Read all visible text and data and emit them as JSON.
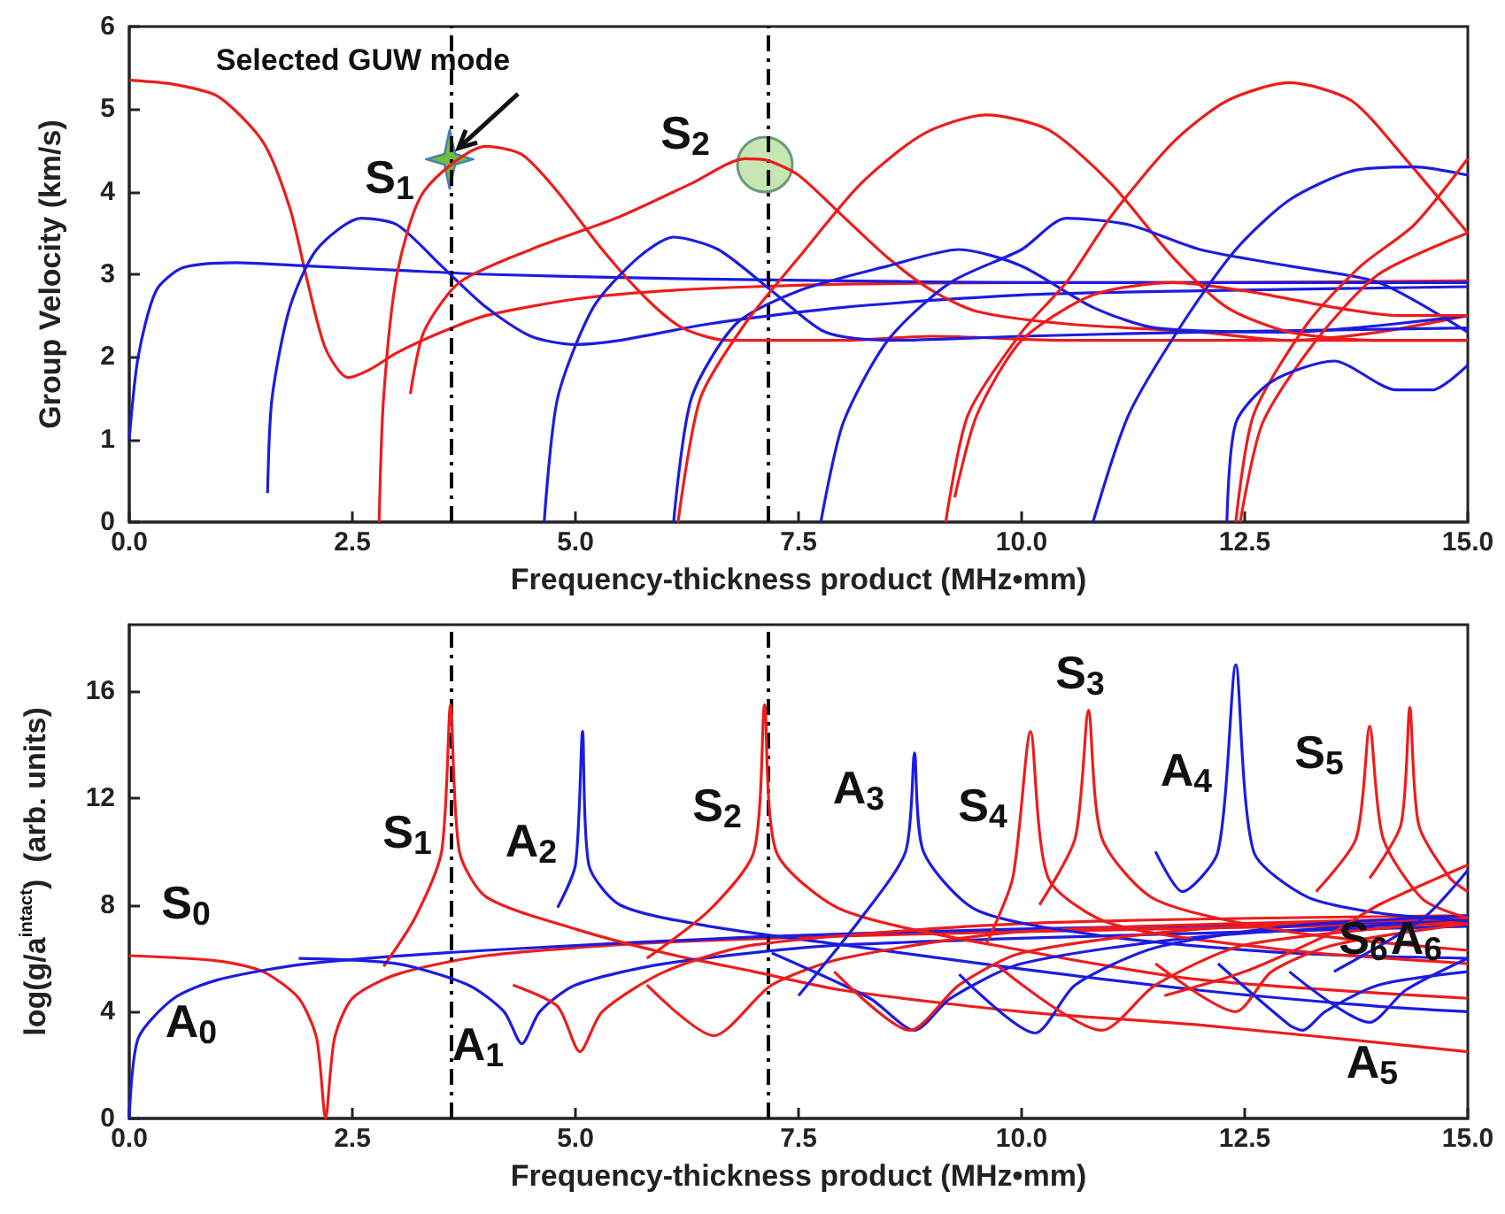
{
  "chart_data": [
    {
      "type": "line",
      "xlabel": "Frequency-thickness product (MHz•mm)",
      "ylabel": "Group Velocity (km/s)",
      "xlim": [
        0,
        15
      ],
      "xticks": [
        {
          "value": 0,
          "label": "0.0"
        },
        {
          "value": 2.5,
          "label": "2.5"
        },
        {
          "value": 5,
          "label": "5.0"
        },
        {
          "value": 7.5,
          "label": "7.5"
        },
        {
          "value": 10,
          "label": "10.0"
        },
        {
          "value": 12.5,
          "label": "12.5"
        },
        {
          "value": 15,
          "label": "15.0"
        }
      ],
      "ylim": [
        0,
        6
      ],
      "yticks": [
        0,
        1,
        2,
        3,
        4,
        5,
        6
      ],
      "annotations": [
        {
          "text": "Selected GUW mode",
          "x": 3.6,
          "y": 4.4
        },
        "S$_{1}$",
        "S$_{2}$"
      ],
      "ref_lines": [
        {
          "axis": "x",
          "value": 3.6,
          "label": null,
          "line_style": "dashed",
          "color": "#000000"
        },
        {
          "axis": "x",
          "value": 7.15,
          "label": null,
          "line_style": "dashed",
          "color": "#000000"
        }
      ],
      "series": [
        {
          "color": "#ee1c1c",
          "x": [
            0,
            0.5,
            1,
            1.5,
            1.8,
            2,
            2.2,
            2.45,
            2.7,
            3,
            3.5,
            4,
            5,
            6,
            7,
            8,
            10,
            12,
            15
          ],
          "values": [
            5.35,
            5.3,
            5.15,
            4.6,
            3.8,
            2.9,
            2.1,
            1.75,
            1.85,
            2.05,
            2.3,
            2.5,
            2.7,
            2.8,
            2.85,
            2.88,
            2.9,
            2.9,
            2.92
          ]
        },
        {
          "color": "#1c1ce0",
          "x": [
            0,
            0.1,
            0.3,
            0.6,
            1.2,
            2,
            3,
            4,
            6,
            8,
            10,
            12,
            15
          ],
          "values": [
            1,
            2,
            2.8,
            3.08,
            3.14,
            3.1,
            3.05,
            3,
            2.95,
            2.92,
            2.9,
            2.9,
            2.9
          ]
        },
        {
          "color": "#1c1ce0",
          "x": [
            1.55,
            1.6,
            1.8,
            2.1,
            2.6,
            3,
            3.5,
            4,
            4.5,
            5,
            5.5,
            6.5,
            8,
            10,
            12,
            15
          ],
          "values": [
            0.35,
            1.5,
            2.6,
            3.3,
            3.68,
            3.6,
            3.1,
            2.6,
            2.25,
            2.15,
            2.2,
            2.4,
            2.6,
            2.75,
            2.8,
            2.85
          ]
        },
        {
          "color": "#ee1c1c",
          "x": [
            2.8,
            2.85,
            3,
            3.3,
            4,
            4.4,
            4.8,
            5.3,
            5.8,
            6.2,
            6.7,
            7.2,
            8,
            9,
            10.5,
            12,
            14,
            15
          ],
          "values": [
            0,
            1.5,
            3,
            4,
            4.55,
            4.45,
            4,
            3.3,
            2.7,
            2.35,
            2.2,
            2.2,
            2.2,
            2.25,
            2.2,
            2.2,
            2.2,
            2.2
          ]
        },
        {
          "color": "#ee1c1c",
          "x": [
            3.15,
            3.3,
            3.7,
            4.5,
            5.5,
            6.3,
            6.9,
            7.15,
            7.5,
            8,
            8.5,
            9,
            9.5,
            10.5,
            12,
            13,
            14,
            15
          ],
          "values": [
            1.55,
            2.3,
            2.9,
            3.3,
            3.7,
            4.1,
            4.4,
            4.38,
            4.2,
            3.7,
            3.2,
            2.8,
            2.55,
            2.4,
            2.3,
            2.2,
            2.3,
            2.5
          ]
        },
        {
          "color": "#1c1ce0",
          "x": [
            4.65,
            4.8,
            5.2,
            5.7,
            6.1,
            6.6,
            7.2,
            7.8,
            8.5,
            10,
            12,
            15
          ],
          "values": [
            0,
            1.5,
            2.6,
            3.2,
            3.45,
            3.3,
            2.8,
            2.3,
            2.2,
            2.25,
            2.3,
            2.35
          ]
        },
        {
          "color": "#1c1ce0",
          "x": [
            6.1,
            6.3,
            6.8,
            7.5,
            8.5,
            9.3,
            10,
            10.8,
            11.5,
            13,
            15
          ],
          "values": [
            0,
            1.5,
            2.4,
            2.8,
            3.1,
            3.3,
            3.1,
            2.6,
            2.35,
            2.3,
            2.5
          ]
        },
        {
          "color": "#ee1c1c",
          "x": [
            6.15,
            6.4,
            6.9,
            7.5,
            8.2,
            8.9,
            9.6,
            10.3,
            11,
            11.7,
            12.3,
            13,
            14,
            15
          ],
          "values": [
            0,
            1.5,
            2.4,
            3.2,
            4.1,
            4.7,
            4.93,
            4.75,
            4.1,
            3.2,
            2.6,
            2.3,
            2.2,
            2.2
          ]
        },
        {
          "color": "#1c1ce0",
          "x": [
            7.75,
            8,
            8.5,
            9.2,
            10,
            10.5,
            11.2,
            12,
            13,
            14,
            15
          ],
          "values": [
            0,
            1.2,
            2.2,
            2.9,
            3.3,
            3.68,
            3.6,
            3.3,
            3.1,
            2.9,
            2.3
          ]
        },
        {
          "color": "#ee1c1c",
          "x": [
            9.15,
            9.4,
            10,
            10.5,
            11,
            11.7,
            12.3,
            13,
            13.7,
            14.3,
            15
          ],
          "values": [
            0,
            1.3,
            2.3,
            2.9,
            3.7,
            4.6,
            5.1,
            5.32,
            5.1,
            4.4,
            3.5
          ]
        },
        {
          "color": "#ee1c1c",
          "x": [
            9.25,
            9.5,
            10,
            10.8,
            11.7,
            12.5,
            13.5,
            14.2,
            15
          ],
          "values": [
            0.3,
            1.3,
            2.2,
            2.75,
            2.9,
            2.8,
            2.6,
            2.5,
            2.5
          ]
        },
        {
          "color": "#1c1ce0",
          "x": [
            10.8,
            11.2,
            11.8,
            12.4,
            13,
            13.7,
            14.4,
            15
          ],
          "values": [
            0,
            1.3,
            2.4,
            3.3,
            3.9,
            4.25,
            4.3,
            4.2
          ]
        },
        {
          "color": "#ee1c1c",
          "x": [
            12.4,
            12.6,
            13.2,
            13.8,
            14.4,
            15
          ],
          "values": [
            0,
            1.3,
            2.4,
            3.1,
            3.6,
            4.4
          ]
        },
        {
          "color": "#ee1c1c",
          "x": [
            12.45,
            12.7,
            13.3,
            14,
            15
          ],
          "values": [
            0,
            1.2,
            2.2,
            3,
            3.5
          ]
        },
        {
          "color": "#1c1ce0",
          "x": [
            12.3,
            12.4,
            12.8,
            13.5,
            14.2,
            14.6,
            15
          ],
          "values": [
            0,
            1.2,
            1.7,
            1.95,
            1.6,
            1.6,
            1.9
          ]
        }
      ]
    },
    {
      "type": "line",
      "xlabel": "Frequency-thickness product (MHz•mm)",
      "ylabel": "log(g/a$^{intact}$)  (arb. units)",
      "xlim": [
        0,
        15
      ],
      "xticks": [
        {
          "value": 0,
          "label": "0.0"
        },
        {
          "value": 2.5,
          "label": "2.5"
        },
        {
          "value": 5,
          "label": "5.0"
        },
        {
          "value": 7.5,
          "label": "7.5"
        },
        {
          "value": 10,
          "label": "10.0"
        },
        {
          "value": 12.5,
          "label": "12.5"
        },
        {
          "value": 15,
          "label": "15.0"
        }
      ],
      "ylim": [
        0,
        18.5
      ],
      "yticks": [
        0,
        4,
        8,
        12,
        16
      ],
      "annotations": [
        "S$_{0}$",
        "A$_{0}$",
        "S$_{1}$",
        "A$_{1}$",
        "A$_{2}$",
        "S$_{2}$",
        "A$_{3}$",
        "S$_{4}$",
        "S$_{3}$",
        "A$_{4}$",
        "S$_{5}$",
        "S$_{6}$",
        "A$_{6}$",
        "A$_{5}$"
      ],
      "ref_lines": [
        {
          "axis": "x",
          "value": 3.6,
          "label": null,
          "line_style": "dashed",
          "color": "#000000"
        },
        {
          "axis": "x",
          "value": 7.15,
          "label": null,
          "line_style": "dashed",
          "color": "#000000"
        }
      ],
      "series": [
        {
          "color": "#ee1c1c",
          "x": [
            0,
            1,
            1.5,
            1.9,
            2.1,
            2.2,
            2.3,
            2.5,
            3,
            4,
            6,
            10,
            15
          ],
          "values": [
            6.1,
            5.9,
            5.5,
            4.5,
            3,
            0,
            3,
            4.5,
            5.4,
            6.1,
            6.6,
            7,
            7.3
          ]
        },
        {
          "color": "#1c1ce0",
          "x": [
            0,
            0.1,
            0.5,
            1,
            2,
            4,
            7,
            10,
            15
          ],
          "values": [
            0,
            3,
            4.5,
            5.2,
            5.8,
            6.3,
            6.8,
            7.1,
            7.4
          ]
        },
        {
          "color": "#ee1c1c",
          "x": [
            2.85,
            3.2,
            3.5,
            3.6,
            3.7,
            4,
            5,
            6,
            7,
            8,
            10,
            12,
            15
          ],
          "values": [
            5.7,
            7.5,
            10,
            15.5,
            10,
            8.3,
            7.1,
            6.2,
            5.5,
            4.8,
            4,
            3.5,
            2.5
          ]
        },
        {
          "color": "#1c1ce0",
          "x": [
            1.9,
            3,
            3.8,
            4.2,
            4.4,
            4.6,
            5,
            6,
            8,
            15
          ],
          "values": [
            6,
            5.8,
            5,
            4,
            2.8,
            4,
            5,
            5.8,
            6.5,
            7.2
          ]
        },
        {
          "color": "#1c1ce0",
          "x": [
            4.8,
            5,
            5.08,
            5.15,
            5.5,
            6.5,
            8,
            10,
            12,
            14,
            15
          ],
          "values": [
            7.9,
            9.5,
            14.5,
            9.5,
            8,
            7.2,
            6.5,
            5.6,
            4.8,
            4.2,
            4
          ]
        },
        {
          "color": "#ee1c1c",
          "x": [
            4.3,
            4.8,
            5.05,
            5.3,
            6,
            7,
            10,
            15
          ],
          "values": [
            5,
            4.2,
            2.5,
            4,
            5.5,
            6.5,
            7.3,
            7.6
          ]
        },
        {
          "color": "#ee1c1c",
          "x": [
            5.8,
            6.5,
            7,
            7.12,
            7.25,
            8,
            10,
            12,
            15
          ],
          "values": [
            6,
            7.8,
            10,
            15.5,
            10,
            7.8,
            6.3,
            5.2,
            4.5
          ]
        },
        {
          "color": "#ee1c1c",
          "x": [
            5.8,
            6.55,
            7.2,
            8,
            10,
            15
          ],
          "values": [
            5,
            3.1,
            5,
            6,
            7,
            7.5
          ]
        },
        {
          "color": "#1c1ce0",
          "x": [
            7.5,
            8.2,
            8.7,
            8.8,
            8.9,
            9.5,
            11,
            13,
            15
          ],
          "values": [
            4.6,
            7.5,
            10,
            13.7,
            10,
            7.8,
            6.8,
            6.2,
            6
          ]
        },
        {
          "color": "#1c1ce0",
          "x": [
            7.2,
            8.3,
            8.8,
            9.2,
            10,
            12,
            15
          ],
          "values": [
            6.2,
            4.5,
            3.3,
            4.5,
            5.8,
            6.8,
            7.4
          ]
        },
        {
          "color": "#ee1c1c",
          "x": [
            7.9,
            8.75,
            9.3,
            10,
            12,
            15
          ],
          "values": [
            5.5,
            3.3,
            5,
            6.2,
            7.1,
            7.5
          ]
        },
        {
          "color": "#ee1c1c",
          "x": [
            9.6,
            9.9,
            10.1,
            10.3,
            11,
            13,
            15
          ],
          "values": [
            6.5,
            9,
            14.5,
            9,
            7.3,
            6.3,
            5.8
          ]
        },
        {
          "color": "#1c1ce0",
          "x": [
            9.3,
            10.15,
            10.6,
            11.5,
            13,
            15
          ],
          "values": [
            5.4,
            3.2,
            5,
            6.4,
            7.2,
            7.6
          ]
        },
        {
          "color": "#ee1c1c",
          "x": [
            10.2,
            10.6,
            10.75,
            10.9,
            11.5,
            13,
            15
          ],
          "values": [
            8,
            10.5,
            15.3,
            10.5,
            8.2,
            7,
            6.3
          ]
        },
        {
          "color": "#ee1c1c",
          "x": [
            9.7,
            10.9,
            11.5,
            12.5,
            15
          ],
          "values": [
            5.8,
            3.3,
            5,
            6.5,
            7.4
          ]
        },
        {
          "color": "#1c1ce0",
          "x": [
            11.5,
            11.8,
            12.2,
            12.4,
            12.6,
            13.2,
            14,
            15
          ],
          "values": [
            10,
            8.5,
            10,
            17,
            10,
            8.3,
            7.7,
            7.4
          ]
        },
        {
          "color": "#ee1c1c",
          "x": [
            11.5,
            12.4,
            12.8,
            13.5,
            15
          ],
          "values": [
            5.8,
            4,
            5.5,
            6.5,
            7.3
          ]
        },
        {
          "color": "#ee1c1c",
          "x": [
            13.3,
            13.75,
            13.9,
            14.05,
            14.5,
            15
          ],
          "values": [
            8.5,
            10.5,
            14.7,
            10.5,
            8.2,
            7.5
          ]
        },
        {
          "color": "#ee1c1c",
          "x": [
            13.9,
            14.25,
            14.35,
            14.45,
            14.8,
            15
          ],
          "values": [
            9,
            11,
            15.4,
            11,
            9,
            8.5
          ]
        },
        {
          "color": "#1c1ce0",
          "x": [
            12.2,
            13,
            13.15,
            13.4,
            14,
            15
          ],
          "values": [
            5.8,
            3.5,
            3.3,
            4,
            5,
            5.5
          ]
        },
        {
          "color": "#1c1ce0",
          "x": [
            13,
            13.9,
            14.3,
            15
          ],
          "values": [
            5.5,
            3.6,
            4.8,
            6
          ]
        },
        {
          "color": "#1c1ce0",
          "x": [
            13.5,
            14.5,
            15
          ],
          "values": [
            5.5,
            7.5,
            9.3
          ]
        },
        {
          "color": "#ee1c1c",
          "x": [
            11.6,
            12.5,
            13.5,
            14,
            15
          ],
          "values": [
            4.6,
            5.5,
            7,
            8,
            9.5
          ]
        }
      ]
    }
  ]
}
